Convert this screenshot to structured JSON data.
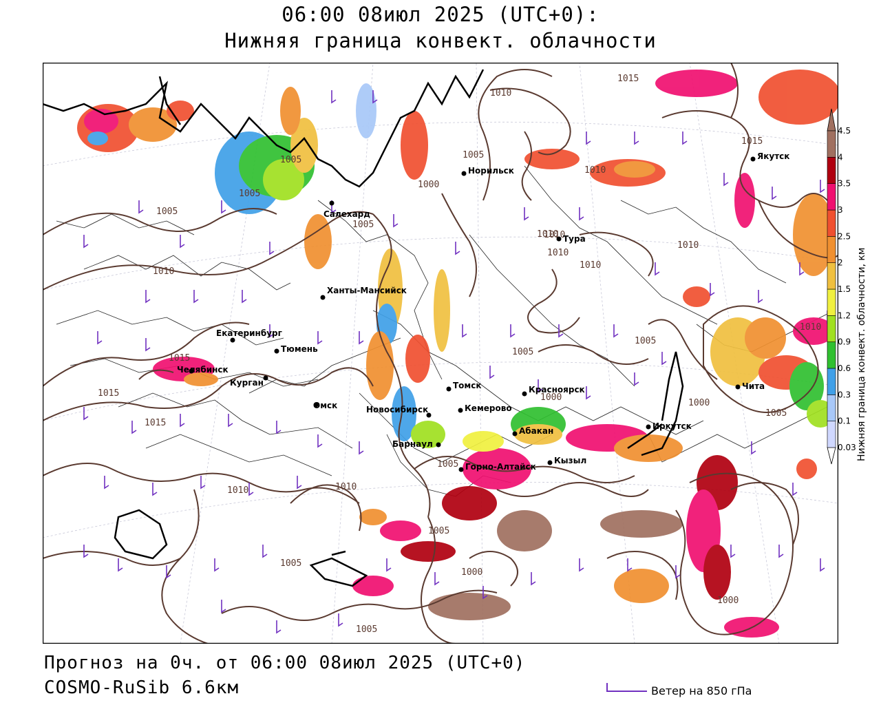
{
  "title": {
    "line1": "06:00 08июл 2025 (UTC+0):",
    "line2": "Нижняя граница конвект. облачности"
  },
  "footer": {
    "forecast": "Прогноз на 0ч. от 06:00 08июл 2025 (UTC+0)",
    "model": "COSMO-RuSib 6.6км"
  },
  "wind_legend": {
    "label": "Ветер на 850 гПа",
    "color": "#7030c0"
  },
  "colorbar": {
    "title": "Нижняя граница конвект. облачности, км",
    "levels": [
      "0.03",
      "0.1",
      "0.3",
      "0.6",
      "0.9",
      "1.2",
      "1.5",
      "2",
      "2.5",
      "3",
      "3.5",
      "4",
      "4.5"
    ],
    "colors": [
      "#d0d8ff",
      "#a8c8f8",
      "#40a0e8",
      "#30c030",
      "#a0e020",
      "#f0f040",
      "#f0c040",
      "#f09030",
      "#f05030",
      "#f01070",
      "#b00010",
      "#a07060"
    ]
  },
  "cities": [
    {
      "name": "Норильск"
    },
    {
      "name": "Салехард"
    },
    {
      "name": "Тура"
    },
    {
      "name": "Якутск"
    },
    {
      "name": "Ханты-Мансийск"
    },
    {
      "name": "Екатеринбург"
    },
    {
      "name": "Тюмень"
    },
    {
      "name": "Челябинск"
    },
    {
      "name": "Курган"
    },
    {
      "name": "Омск"
    },
    {
      "name": "Новосибирск"
    },
    {
      "name": "Томск"
    },
    {
      "name": "Кемерово"
    },
    {
      "name": "Красноярск"
    },
    {
      "name": "Абакан"
    },
    {
      "name": "Барнаул"
    },
    {
      "name": "Горно-Алтайск"
    },
    {
      "name": "Кызыл"
    },
    {
      "name": "Иркутск"
    },
    {
      "name": "Чита"
    }
  ],
  "isobar_labels": [
    "1015",
    "1010",
    "1005",
    "1010",
    "1010",
    "1005",
    "1000",
    "1005",
    "1005",
    "1005",
    "1010",
    "1010",
    "1010",
    "1010",
    "1010",
    "1005",
    "1015",
    "1015",
    "1015",
    "1005",
    "1000",
    "1000",
    "1005",
    "1010",
    "1010",
    "1005",
    "1005",
    "1000",
    "1000",
    "1005",
    "1015",
    "1010",
    "1005"
  ]
}
